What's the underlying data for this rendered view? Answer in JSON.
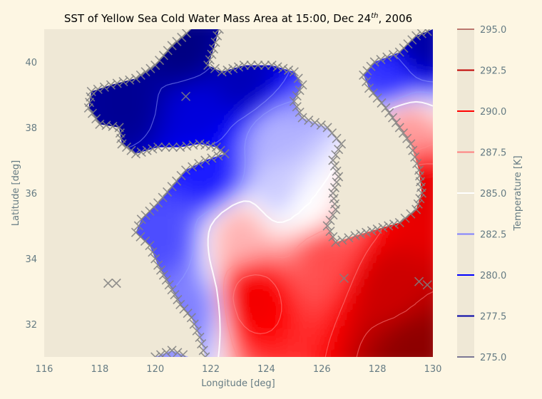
{
  "chart_data": {
    "type": "heatmap",
    "title": {
      "prefix": "SST of Yellow Sea Cold Water Mass Area at 15:00, Dec 24",
      "superscript": "th",
      "suffix": ", 2006"
    },
    "xlabel": "Longitude [deg]",
    "ylabel": "Latitude  [deg]",
    "colorbar_label": "Temperature [K]",
    "xlim": [
      116,
      130
    ],
    "ylim": [
      31,
      41
    ],
    "x_ticks": [
      116,
      118,
      120,
      122,
      124,
      126,
      128,
      130
    ],
    "y_ticks": [
      32,
      34,
      36,
      38,
      40
    ],
    "colorbar_range": [
      275.0,
      295.0
    ],
    "colorbar_ticks": [
      "275.0",
      "277.5",
      "280.0",
      "282.5",
      "285.0",
      "287.5",
      "290.0",
      "292.5",
      "295.0"
    ],
    "colormap": "seismic",
    "colormap_stops": [
      "#00004c",
      "#0000ff",
      "#ffffff",
      "#ff0000",
      "#800000"
    ],
    "contour_levels": [
      275.0,
      277.5,
      280.0,
      282.5,
      285.0,
      287.5,
      290.0,
      292.5,
      295.0
    ],
    "land_color": "#efe8d6",
    "coast_marker": "x",
    "coast_marker_color": "#808080",
    "temperature_field": {
      "description_points": [
        {
          "lon": 121.0,
          "lat": 40.4,
          "t": 276.5
        },
        {
          "lon": 119.0,
          "lat": 38.7,
          "t": 277.0
        },
        {
          "lon": 121.5,
          "lat": 38.4,
          "t": 279.0
        },
        {
          "lon": 123.2,
          "lat": 39.4,
          "t": 278.0
        },
        {
          "lon": 124.3,
          "lat": 37.7,
          "t": 283.5
        },
        {
          "lon": 122.0,
          "lat": 36.5,
          "t": 280.5
        },
        {
          "lon": 124.5,
          "lat": 36.2,
          "t": 284.0
        },
        {
          "lon": 125.5,
          "lat": 35.5,
          "t": 285.0
        },
        {
          "lon": 120.3,
          "lat": 34.6,
          "t": 281.5
        },
        {
          "lon": 121.3,
          "lat": 32.5,
          "t": 282.5
        },
        {
          "lon": 123.0,
          "lat": 34.8,
          "t": 286.5
        },
        {
          "lon": 126.0,
          "lat": 34.2,
          "t": 288.5
        },
        {
          "lon": 123.5,
          "lat": 32.8,
          "t": 290.5
        },
        {
          "lon": 128.5,
          "lat": 33.0,
          "t": 292.0
        },
        {
          "lon": 129.3,
          "lat": 31.3,
          "t": 294.5
        },
        {
          "lon": 129.5,
          "lat": 36.0,
          "t": 291.0
        },
        {
          "lon": 129.0,
          "lat": 38.0,
          "t": 287.0
        },
        {
          "lon": 129.5,
          "lat": 40.5,
          "t": 277.5
        },
        {
          "lon": 128.5,
          "lat": 39.5,
          "t": 281.0
        }
      ]
    }
  }
}
